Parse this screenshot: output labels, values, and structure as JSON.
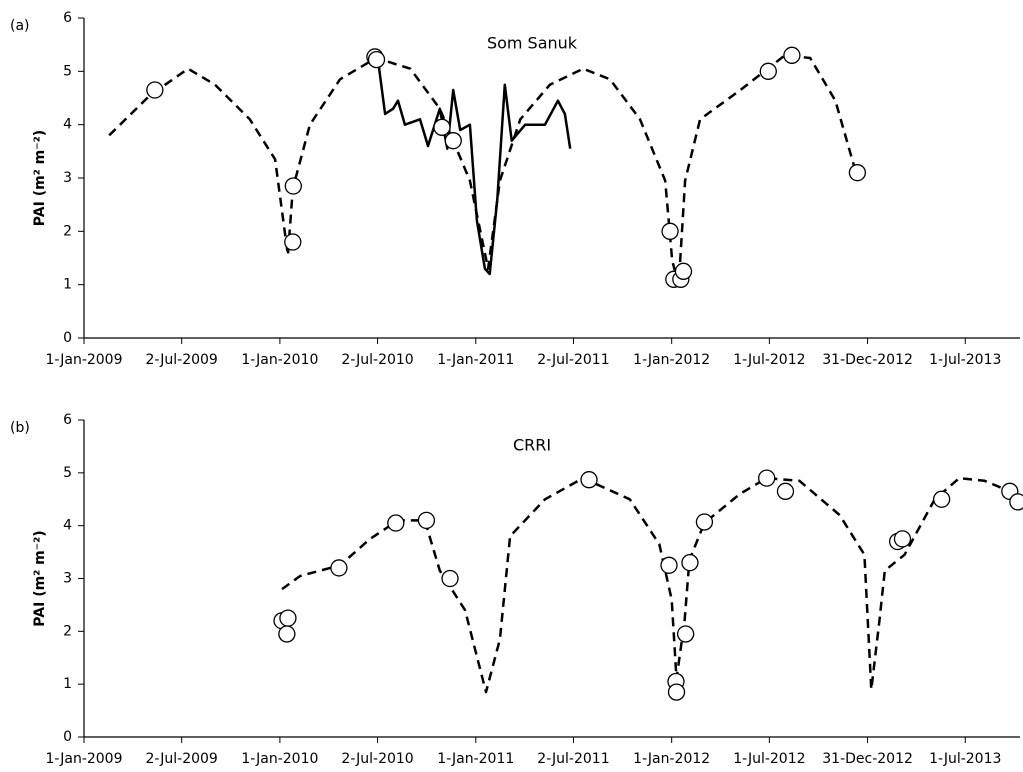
{
  "chart_data": [
    {
      "type": "line",
      "panel_label": "(a)",
      "title": "Som Sanuk",
      "ylabel": "PAI (m² m⁻²)",
      "xlim": [
        "2009-01-01",
        "2013-10-11"
      ],
      "xticks": [
        {
          "value": "2009-01-01",
          "label": "1-Jan-2009"
        },
        {
          "value": "2009-07-02",
          "label": "2-Jul-2009"
        },
        {
          "value": "2010-01-01",
          "label": "1-Jan-2010"
        },
        {
          "value": "2010-07-02",
          "label": "2-Jul-2010"
        },
        {
          "value": "2011-01-01",
          "label": "1-Jan-2011"
        },
        {
          "value": "2011-07-02",
          "label": "2-Jul-2011"
        },
        {
          "value": "2012-01-01",
          "label": "1-Jan-2012"
        },
        {
          "value": "2012-07-01",
          "label": "1-Jul-2012"
        },
        {
          "value": "2012-12-31",
          "label": "31-Dec-2012"
        },
        {
          "value": "2013-07-01",
          "label": "1-Jul-2013"
        }
      ],
      "ylim": [
        0,
        6
      ],
      "yticks": [
        0,
        1,
        2,
        3,
        4,
        5,
        6
      ],
      "series": [
        {
          "style": "dashed",
          "color": "#000000",
          "x": [
            "2009-02-17",
            "2009-05-04",
            "2009-07-14",
            "2009-09-02",
            "2009-11-06",
            "2009-12-23",
            "2010-01-16",
            "2010-01-25",
            "2010-02-26",
            "2010-04-23",
            "2010-06-29",
            "2010-09-01",
            "2010-10-26",
            "2010-12-21",
            "2011-01-24",
            "2011-02-15",
            "2011-03-25",
            "2011-05-19",
            "2011-07-20",
            "2011-09-08",
            "2011-11-03",
            "2011-12-20",
            "2012-01-02",
            "2012-01-14",
            "2012-01-26",
            "2012-02-23",
            "2012-05-08",
            "2012-07-30",
            "2012-09-15",
            "2012-11-01",
            "2012-12-08"
          ],
          "values": [
            3.8,
            4.55,
            5.05,
            4.75,
            4.1,
            3.35,
            1.55,
            2.8,
            4.0,
            4.85,
            5.25,
            5.05,
            4.3,
            2.95,
            1.3,
            2.95,
            4.1,
            4.75,
            5.05,
            4.85,
            4.1,
            2.95,
            1.45,
            1.0,
            2.95,
            4.1,
            4.65,
            5.3,
            5.25,
            4.45,
            3.15
          ]
        },
        {
          "style": "solid",
          "color": "#000000",
          "x": [
            "2010-07-03",
            "2010-07-16",
            "2010-07-31",
            "2010-08-09",
            "2010-08-22",
            "2010-09-19",
            "2010-10-04",
            "2010-10-26",
            "2010-11-09",
            "2010-11-20",
            "2010-12-03",
            "2010-12-21",
            "2011-01-03",
            "2011-01-18",
            "2011-01-27",
            "2011-02-10",
            "2011-02-24",
            "2011-03-09",
            "2011-04-03",
            "2011-05-10",
            "2011-06-03",
            "2011-06-16",
            "2011-06-26"
          ],
          "values": [
            5.2,
            4.2,
            4.3,
            4.45,
            4.0,
            4.1,
            3.6,
            4.3,
            3.55,
            4.65,
            3.9,
            4.0,
            2.2,
            1.3,
            1.2,
            2.6,
            4.75,
            3.7,
            4.0,
            4.0,
            4.45,
            4.2,
            3.55
          ]
        },
        {
          "style": "markers",
          "color": "#000000",
          "x": [
            "2009-05-13",
            "2010-01-25",
            "2010-01-26",
            "2010-06-27",
            "2010-06-30",
            "2010-10-30",
            "2010-11-20",
            "2011-12-29",
            "2012-01-05",
            "2012-01-18",
            "2012-01-23",
            "2012-06-29",
            "2012-08-12",
            "2012-12-12"
          ],
          "values": [
            4.65,
            1.8,
            2.85,
            5.27,
            5.22,
            3.95,
            3.7,
            2.0,
            1.1,
            1.1,
            1.25,
            5.0,
            5.3,
            3.1
          ]
        }
      ]
    },
    {
      "type": "line",
      "panel_label": "(b)",
      "title": "CRRI",
      "ylabel": "PAI (m² m⁻²)",
      "xlim": [
        "2009-01-01",
        "2013-10-11"
      ],
      "xticks": [
        {
          "value": "2009-01-01",
          "label": "1-Jan-2009"
        },
        {
          "value": "2009-07-02",
          "label": "2-Jul-2009"
        },
        {
          "value": "2010-01-01",
          "label": "1-Jan-2010"
        },
        {
          "value": "2010-07-02",
          "label": "2-Jul-2010"
        },
        {
          "value": "2011-01-01",
          "label": "1-Jan-2011"
        },
        {
          "value": "2011-07-02",
          "label": "2-Jul-2011"
        },
        {
          "value": "2012-01-01",
          "label": "1-Jan-2012"
        },
        {
          "value": "2012-07-01",
          "label": "1-Jul-2012"
        },
        {
          "value": "2012-12-31",
          "label": "31-Dec-2012"
        },
        {
          "value": "2013-07-01",
          "label": "1-Jul-2013"
        }
      ],
      "ylim": [
        0,
        6
      ],
      "yticks": [
        0,
        1,
        2,
        3,
        4,
        5,
        6
      ],
      "series": [
        {
          "style": "dashed",
          "color": "#000000",
          "x": [
            "2010-01-05",
            "2010-02-08",
            "2010-04-23",
            "2010-06-18",
            "2010-08-09",
            "2010-09-28",
            "2010-10-26",
            "2010-12-12",
            "2011-01-05",
            "2011-01-20",
            "2011-02-15",
            "2011-03-06",
            "2011-05-10",
            "2011-07-20",
            "2011-10-15",
            "2011-12-09",
            "2012-01-01",
            "2012-01-10",
            "2012-01-25",
            "2012-02-03",
            "2012-03-02",
            "2012-05-07",
            "2012-06-26",
            "2012-08-26",
            "2012-11-09",
            "2012-12-25",
            "2013-01-07",
            "2013-01-22",
            "2013-02-01",
            "2013-03-10",
            "2013-05-05",
            "2013-06-20",
            "2013-08-06",
            "2013-09-22"
          ],
          "values": [
            2.8,
            3.05,
            3.25,
            3.75,
            4.1,
            4.1,
            3.15,
            2.4,
            1.45,
            0.85,
            1.85,
            3.8,
            4.5,
            4.9,
            4.5,
            3.65,
            2.6,
            1.1,
            2.2,
            3.35,
            4.05,
            4.6,
            4.9,
            4.85,
            4.2,
            3.45,
            0.9,
            2.2,
            3.15,
            3.45,
            4.5,
            4.9,
            4.85,
            4.65
          ]
        },
        {
          "style": "markers",
          "color": "#000000",
          "x": [
            "2010-01-05",
            "2010-01-16",
            "2010-01-14",
            "2010-04-21",
            "2010-08-05",
            "2010-10-01",
            "2010-11-14",
            "2011-07-31",
            "2011-12-27",
            "2012-01-09",
            "2012-01-10",
            "2012-01-27",
            "2012-02-04",
            "2012-03-02",
            "2012-06-26",
            "2012-07-31",
            "2013-02-25",
            "2013-03-06",
            "2013-05-18",
            "2013-09-22",
            "2013-10-07"
          ],
          "values": [
            2.2,
            2.25,
            1.95,
            3.2,
            4.05,
            4.1,
            3.0,
            4.87,
            3.25,
            1.05,
            0.85,
            1.95,
            3.3,
            4.07,
            4.9,
            4.65,
            3.7,
            3.75,
            4.5,
            4.65,
            4.45
          ]
        }
      ]
    }
  ]
}
